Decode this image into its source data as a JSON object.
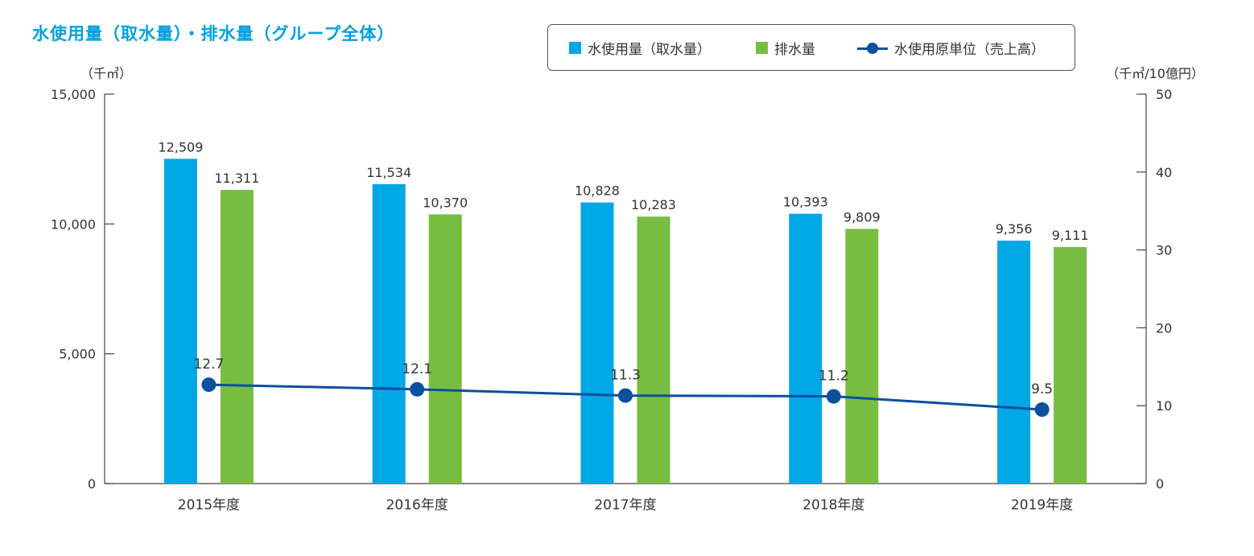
{
  "chart_data": {
    "type": "bar",
    "title": "水使用量（取水量）・排水量（グループ全体）",
    "categories": [
      "2015年度",
      "2016年度",
      "2017年度",
      "2018年度",
      "2019年度"
    ],
    "series": [
      {
        "name": "水使用量（取水量）",
        "type": "bar",
        "axis": "left",
        "color": "#00a7e5",
        "values": [
          12509,
          11534,
          10828,
          10393,
          9356
        ],
        "labels": [
          "12,509",
          "11,534",
          "10,828",
          "10,393",
          "9,356"
        ]
      },
      {
        "name": "排水量",
        "type": "bar",
        "axis": "left",
        "color": "#78bd42",
        "values": [
          11311,
          10370,
          10283,
          9809,
          9111
        ],
        "labels": [
          "11,311",
          "10,370",
          "10,283",
          "9,809",
          "9,111"
        ]
      },
      {
        "name": "水使用原単位（売上高）",
        "type": "line",
        "axis": "right",
        "color": "#0b4f9f",
        "values": [
          12.7,
          12.1,
          11.3,
          11.2,
          9.5
        ],
        "labels": [
          "12.7",
          "12.1",
          "11.3",
          "11.2",
          "9.5"
        ]
      }
    ],
    "y_left": {
      "label": "（千㎥）",
      "min": 0,
      "max": 15000,
      "ticks": [
        0,
        5000,
        10000,
        15000
      ],
      "tick_labels": [
        "0",
        "5,000",
        "10,000",
        "15,000"
      ]
    },
    "y_right": {
      "label": "（千㎥/10億円）",
      "min": 0,
      "max": 50,
      "ticks": [
        0,
        10,
        20,
        30,
        40,
        50
      ],
      "tick_labels": [
        "0",
        "10",
        "20",
        "30",
        "40",
        "50"
      ]
    },
    "legend_position": "top-right",
    "grid": false
  },
  "colors": {
    "title": "#00a0e0",
    "axis": "#444444",
    "text": "#333333"
  }
}
